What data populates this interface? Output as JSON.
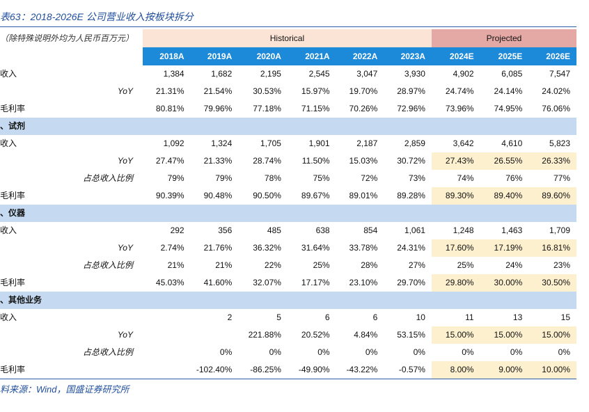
{
  "title": "表63：2018-2026E 公司营业收入按板块拆分",
  "unit_note": "（除特殊说明外均为人民币百万元）",
  "group_headers": {
    "historical": "Historical",
    "projected": "Projected"
  },
  "years": [
    "2018A",
    "2019A",
    "2020A",
    "2021A",
    "2022A",
    "2023A",
    "2024E",
    "2025E",
    "2026E"
  ],
  "rows": [
    {
      "kind": "data",
      "label": "收入",
      "values": [
        "1,384",
        "1,682",
        "2,195",
        "2,545",
        "3,047",
        "3,930",
        "4,902",
        "6,085",
        "7,547"
      ]
    },
    {
      "kind": "sub",
      "label": "YoY",
      "values": [
        "21.31%",
        "21.54%",
        "30.53%",
        "15.97%",
        "19.70%",
        "28.97%",
        "24.74%",
        "24.14%",
        "24.02%"
      ]
    },
    {
      "kind": "data",
      "label": "毛利率",
      "values": [
        "80.81%",
        "79.96%",
        "77.18%",
        "71.15%",
        "70.26%",
        "72.96%",
        "73.96%",
        "74.95%",
        "76.06%"
      ]
    },
    {
      "kind": "segment",
      "label": "、试剂"
    },
    {
      "kind": "data",
      "label": "收入",
      "values": [
        "1,092",
        "1,324",
        "1,705",
        "1,901",
        "2,187",
        "2,859",
        "3,642",
        "4,610",
        "5,823"
      ]
    },
    {
      "kind": "sub",
      "label": "YoY",
      "hl": true,
      "values": [
        "27.47%",
        "21.33%",
        "28.74%",
        "11.50%",
        "15.03%",
        "30.72%",
        "27.43%",
        "26.55%",
        "26.33%"
      ]
    },
    {
      "kind": "sub",
      "label": "占总收入比例",
      "values": [
        "79%",
        "79%",
        "78%",
        "75%",
        "72%",
        "73%",
        "74%",
        "76%",
        "77%"
      ]
    },
    {
      "kind": "data",
      "label": "毛利率",
      "hl": true,
      "values": [
        "90.39%",
        "90.48%",
        "90.50%",
        "89.67%",
        "89.01%",
        "89.28%",
        "89.30%",
        "89.40%",
        "89.60%"
      ]
    },
    {
      "kind": "segment",
      "label": "、仪器"
    },
    {
      "kind": "data",
      "label": "收入",
      "values": [
        "292",
        "356",
        "485",
        "638",
        "854",
        "1,061",
        "1,248",
        "1,463",
        "1,709"
      ]
    },
    {
      "kind": "sub",
      "label": "YoY",
      "hl": true,
      "values": [
        "2.74%",
        "21.76%",
        "36.32%",
        "31.64%",
        "33.78%",
        "24.31%",
        "17.60%",
        "17.19%",
        "16.81%"
      ]
    },
    {
      "kind": "sub",
      "label": "占总收入比例",
      "values": [
        "21%",
        "21%",
        "22%",
        "25%",
        "28%",
        "27%",
        "25%",
        "24%",
        "23%"
      ]
    },
    {
      "kind": "data",
      "label": "毛利率",
      "hl": true,
      "values": [
        "45.03%",
        "41.60%",
        "32.07%",
        "17.17%",
        "23.10%",
        "29.70%",
        "29.80%",
        "30.00%",
        "30.50%"
      ]
    },
    {
      "kind": "segment",
      "label": "、其他业务"
    },
    {
      "kind": "data",
      "label": "收入",
      "values": [
        "",
        "2",
        "5",
        "6",
        "6",
        "10",
        "11",
        "13",
        "15"
      ]
    },
    {
      "kind": "sub",
      "label": "YoY",
      "hl": true,
      "values": [
        "",
        "",
        "221.88%",
        "20.52%",
        "4.84%",
        "53.15%",
        "15.00%",
        "15.00%",
        "15.00%"
      ]
    },
    {
      "kind": "sub",
      "label": "占总收入比例",
      "values": [
        "",
        "0%",
        "0%",
        "0%",
        "0%",
        "0%",
        "0%",
        "0%",
        "0%"
      ]
    },
    {
      "kind": "data",
      "label": "毛利率",
      "hl": true,
      "values": [
        "",
        "-102.40%",
        "-86.25%",
        "-49.90%",
        "-43.22%",
        "-0.57%",
        "8.00%",
        "9.00%",
        "10.00%"
      ]
    }
  ],
  "source": "料来源：Wind，国盛证券研究所",
  "colors": {
    "year_header": "#1d8ad9",
    "segment_band": "#c5daf0",
    "historical_band": "#fbe3d6",
    "projected_band": "#e4a9a4",
    "projection_highlight": "#fdf0cf",
    "title_text": "#1f4e9c"
  }
}
